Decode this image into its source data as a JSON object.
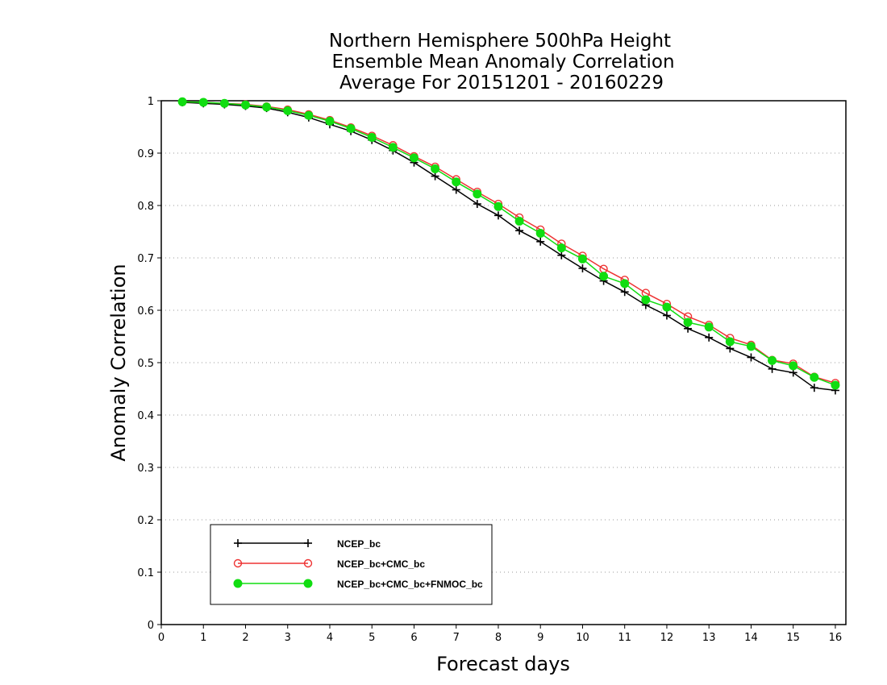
{
  "chart_data": {
    "type": "line",
    "title": [
      "Northern Hemisphere 500hPa Height",
      "Ensemble Mean Anomaly Correlation",
      "Average For 20151201 - 20160229"
    ],
    "xlabel": "Forecast days",
    "ylabel": "Anomaly Correlation",
    "xlim": [
      0,
      16.25
    ],
    "ylim": [
      0,
      1
    ],
    "xticks": [
      0,
      1,
      2,
      3,
      4,
      5,
      6,
      7,
      8,
      9,
      10,
      11,
      12,
      13,
      14,
      15,
      16
    ],
    "yticks": [
      0,
      0.1,
      0.2,
      0.3,
      0.4,
      0.5,
      0.6,
      0.7,
      0.8,
      0.9,
      1
    ],
    "grid": "horizontal dotted",
    "legend_position": "lower-left",
    "x": [
      0.5,
      1,
      1.5,
      2,
      2.5,
      3,
      3.5,
      4,
      4.5,
      5,
      5.5,
      6,
      6.5,
      7,
      7.5,
      8,
      8.5,
      9,
      9.5,
      10,
      10.5,
      11,
      11.5,
      12,
      12.5,
      13,
      13.5,
      14,
      14.5,
      15,
      15.5,
      16
    ],
    "series": [
      {
        "name": "NCEP_bc",
        "color": "#000000",
        "marker": "plus",
        "values": [
          0.997,
          0.995,
          0.993,
          0.99,
          0.986,
          0.978,
          0.968,
          0.955,
          0.942,
          0.925,
          0.905,
          0.882,
          0.856,
          0.83,
          0.803,
          0.781,
          0.752,
          0.731,
          0.705,
          0.68,
          0.656,
          0.635,
          0.61,
          0.59,
          0.565,
          0.548,
          0.527,
          0.51,
          0.488,
          0.481,
          0.452,
          0.447
        ]
      },
      {
        "name": "NCEP_bc+CMC_bc",
        "color": "#ee3333",
        "marker": "open-circle",
        "values": [
          0.998,
          0.997,
          0.995,
          0.993,
          0.989,
          0.983,
          0.974,
          0.963,
          0.949,
          0.933,
          0.915,
          0.894,
          0.874,
          0.85,
          0.826,
          0.803,
          0.777,
          0.754,
          0.727,
          0.704,
          0.679,
          0.658,
          0.633,
          0.612,
          0.588,
          0.572,
          0.547,
          0.534,
          0.505,
          0.498,
          0.473,
          0.461
        ]
      },
      {
        "name": "NCEP_bc+CMC_bc+FNMOC_bc",
        "color": "#11dd11",
        "marker": "filled-circle",
        "values": [
          0.998,
          0.997,
          0.995,
          0.992,
          0.988,
          0.981,
          0.972,
          0.961,
          0.947,
          0.93,
          0.911,
          0.891,
          0.87,
          0.845,
          0.822,
          0.798,
          0.77,
          0.747,
          0.719,
          0.698,
          0.665,
          0.651,
          0.62,
          0.606,
          0.577,
          0.568,
          0.54,
          0.531,
          0.504,
          0.494,
          0.472,
          0.457
        ]
      }
    ]
  }
}
